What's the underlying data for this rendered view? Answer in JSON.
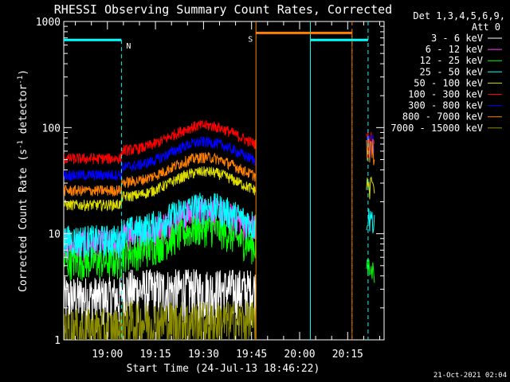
{
  "chart_data": {
    "type": "line",
    "title": "RHESSI Observing Summary Count Rates, Corrected",
    "xlabel": "Start Time (24-Jul-13 18:46:22)",
    "ylabel_main": "Corrected Count Rate (s",
    "ylabel_sup1": "-1",
    "ylabel_mid": " detector",
    "ylabel_sup2": "-1",
    "ylabel_end": ")",
    "y_scale": "log",
    "ylim": [
      1,
      1000
    ],
    "y_ticks": [
      {
        "value": 1,
        "label": "1"
      },
      {
        "value": 10,
        "label": "10"
      },
      {
        "value": 100,
        "label": "100"
      },
      {
        "value": 1000,
        "label": "1000"
      }
    ],
    "xlim_minutes": [
      0,
      100
    ],
    "x_ticks": [
      {
        "minute": 13.63,
        "label": "19:00"
      },
      {
        "minute": 28.63,
        "label": "19:15"
      },
      {
        "minute": 43.63,
        "label": "19:30"
      },
      {
        "minute": 58.63,
        "label": "19:45"
      },
      {
        "minute": 73.63,
        "label": "20:00"
      },
      {
        "minute": 88.63,
        "label": "20:15"
      }
    ],
    "legend_title_1": "Det 1,3,4,5,6,9,",
    "legend_title_2": "Att 0",
    "legend_placement": "right",
    "series": [
      {
        "name": "3 - 6 keV",
        "color": "#ffffff",
        "level": 3.0,
        "flare": 0.0,
        "post": 0.0
      },
      {
        "name": "6 - 12 keV",
        "color": "#ff40ff",
        "level": 9.5,
        "flare": 0.25,
        "post": 0.0
      },
      {
        "name": "12 - 25 keV",
        "color": "#00ff00",
        "level": 6.5,
        "flare": 0.25,
        "post": 4.5
      },
      {
        "name": "25 - 50 keV",
        "color": "#00ffff",
        "level": 10.5,
        "flare": 0.25,
        "post": 14
      },
      {
        "name": "50 - 100 keV",
        "color": "#dddd00",
        "level": 22,
        "flare": 0.25,
        "post": 28
      },
      {
        "name": "100 - 300 keV",
        "color": "#ff0000",
        "level": 60,
        "flare": 0.25,
        "post": 75
      },
      {
        "name": "300 - 800 keV",
        "color": "#0000ff",
        "level": 42,
        "flare": 0.25,
        "post": 70
      },
      {
        "name": "800 - 7000 keV",
        "color": "#ff8000",
        "level": 30,
        "flare": 0.25,
        "post": 62
      },
      {
        "name": "7000 - 15000 keV",
        "color": "#8b8b00",
        "level": 1.5,
        "flare": 0.0,
        "post": 0.0
      }
    ],
    "annotations": [
      {
        "label": "N",
        "color": "#00ffff",
        "start_min": 0,
        "end_min": 18,
        "level": 670,
        "dashed_at_min": 18
      },
      {
        "label": "S",
        "color": "#ff8000",
        "start_min": 60,
        "end_min": 90,
        "level": 780,
        "dashed_at_min": 90
      }
    ],
    "vertical_lines": [
      {
        "minute": 60,
        "color": "#ff8000",
        "style": "solid"
      },
      {
        "minute": 77,
        "color": "#00ffff",
        "style": "solid"
      },
      {
        "minute": 90,
        "color": "#ff8000",
        "style": "dashed"
      },
      {
        "minute": 95,
        "color": "#00ffff",
        "style": "dashed"
      }
    ]
  },
  "timestamp": "21-Oct-2021 02:04"
}
